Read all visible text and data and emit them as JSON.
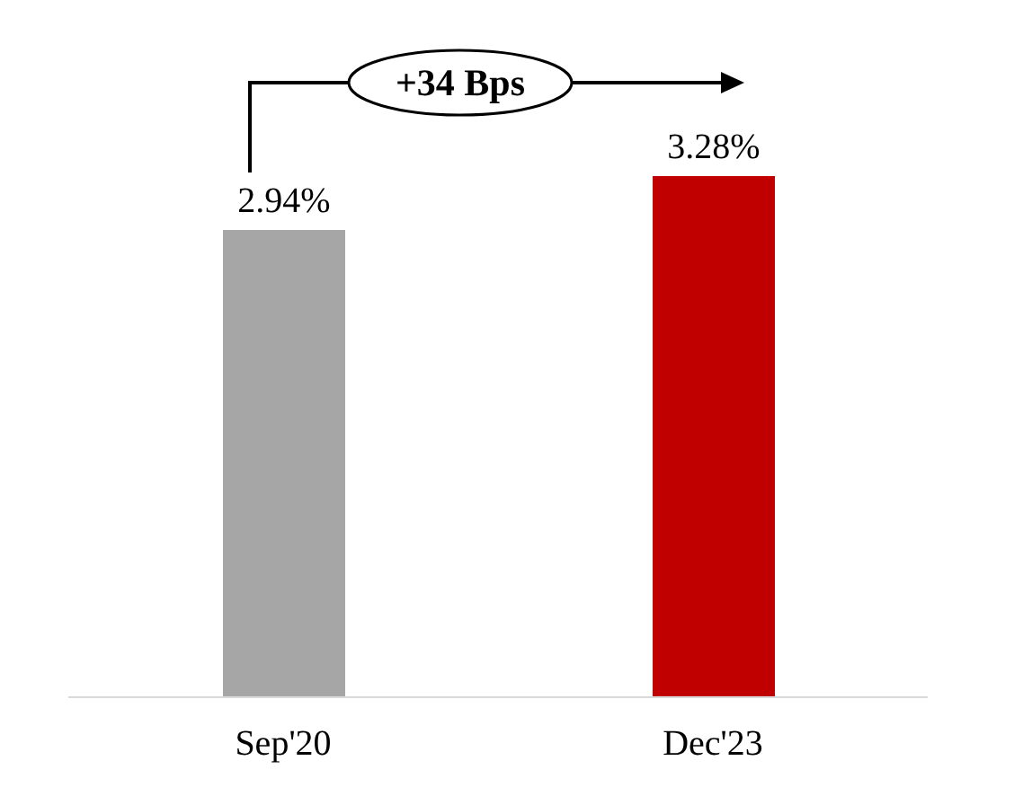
{
  "chart_data": {
    "type": "bar",
    "categories": [
      "Sep'20",
      "Dec'23"
    ],
    "values": [
      2.94,
      3.28
    ],
    "colors": [
      "#a6a6a6",
      "#c00000"
    ],
    "value_labels": [
      "2.94%",
      "3.28%"
    ],
    "annotations": [
      "+34 Bps"
    ]
  }
}
